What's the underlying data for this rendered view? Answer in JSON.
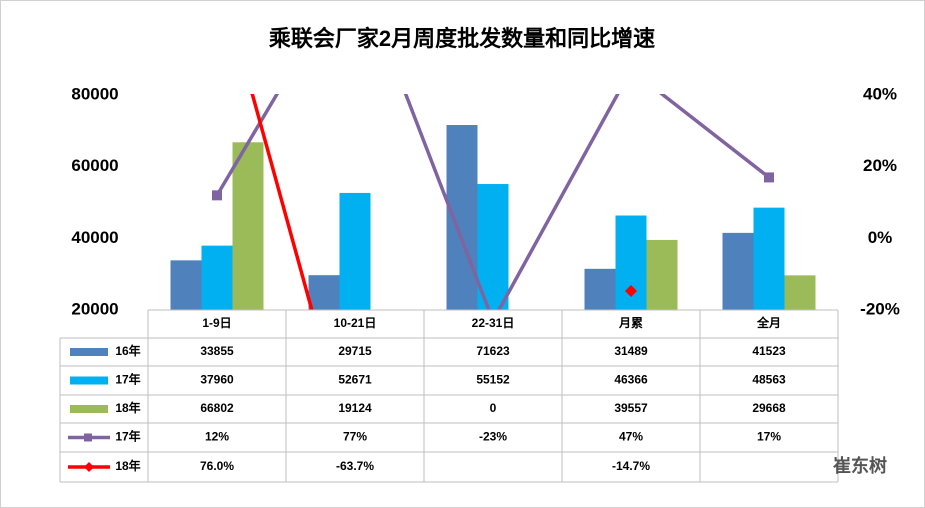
{
  "chart_data": {
    "type": "bar",
    "title": "乘联会厂家2月周度批发数量和同比增速",
    "categories": [
      "1-9日",
      "10-21日",
      "22-31日",
      "月累",
      "全月"
    ],
    "series": [
      {
        "name": "16年",
        "type": "bar",
        "color": "#4f81bd",
        "values": [
          33855,
          29715,
          71623,
          31489,
          41523
        ]
      },
      {
        "name": "17年",
        "type": "bar",
        "color": "#00b0f0",
        "values": [
          37960,
          52671,
          55152,
          46366,
          48563
        ]
      },
      {
        "name": "18年",
        "type": "bar",
        "color": "#9bbb59",
        "values": [
          66802,
          19124,
          0,
          39557,
          29668
        ]
      },
      {
        "name": "17年",
        "type": "line",
        "axis": "y2",
        "marker": "square",
        "color": "#8064a2",
        "values": [
          12,
          77,
          -23,
          47,
          17
        ],
        "value_labels": [
          "12%",
          "77%",
          "-23%",
          "47%",
          "17%"
        ]
      },
      {
        "name": "18年",
        "type": "line",
        "axis": "y2",
        "marker": "diamond",
        "color": "#ff0000",
        "values": [
          76.0,
          -63.7,
          null,
          -14.7,
          null
        ],
        "value_labels": [
          "76.0%",
          "-63.7%",
          null,
          "-14.7%",
          null
        ]
      }
    ],
    "ylim": [
      20000,
      80000
    ],
    "yticks": [
      20000,
      40000,
      60000,
      80000
    ],
    "y2lim": [
      -20,
      40
    ],
    "y2ticks": [
      {
        "value": -20,
        "label": "-20%"
      },
      {
        "value": 0,
        "label": "0%"
      },
      {
        "value": 20,
        "label": "20%"
      },
      {
        "value": 40,
        "label": "40%"
      }
    ],
    "data_table": true
  },
  "watermark": "崔东树"
}
